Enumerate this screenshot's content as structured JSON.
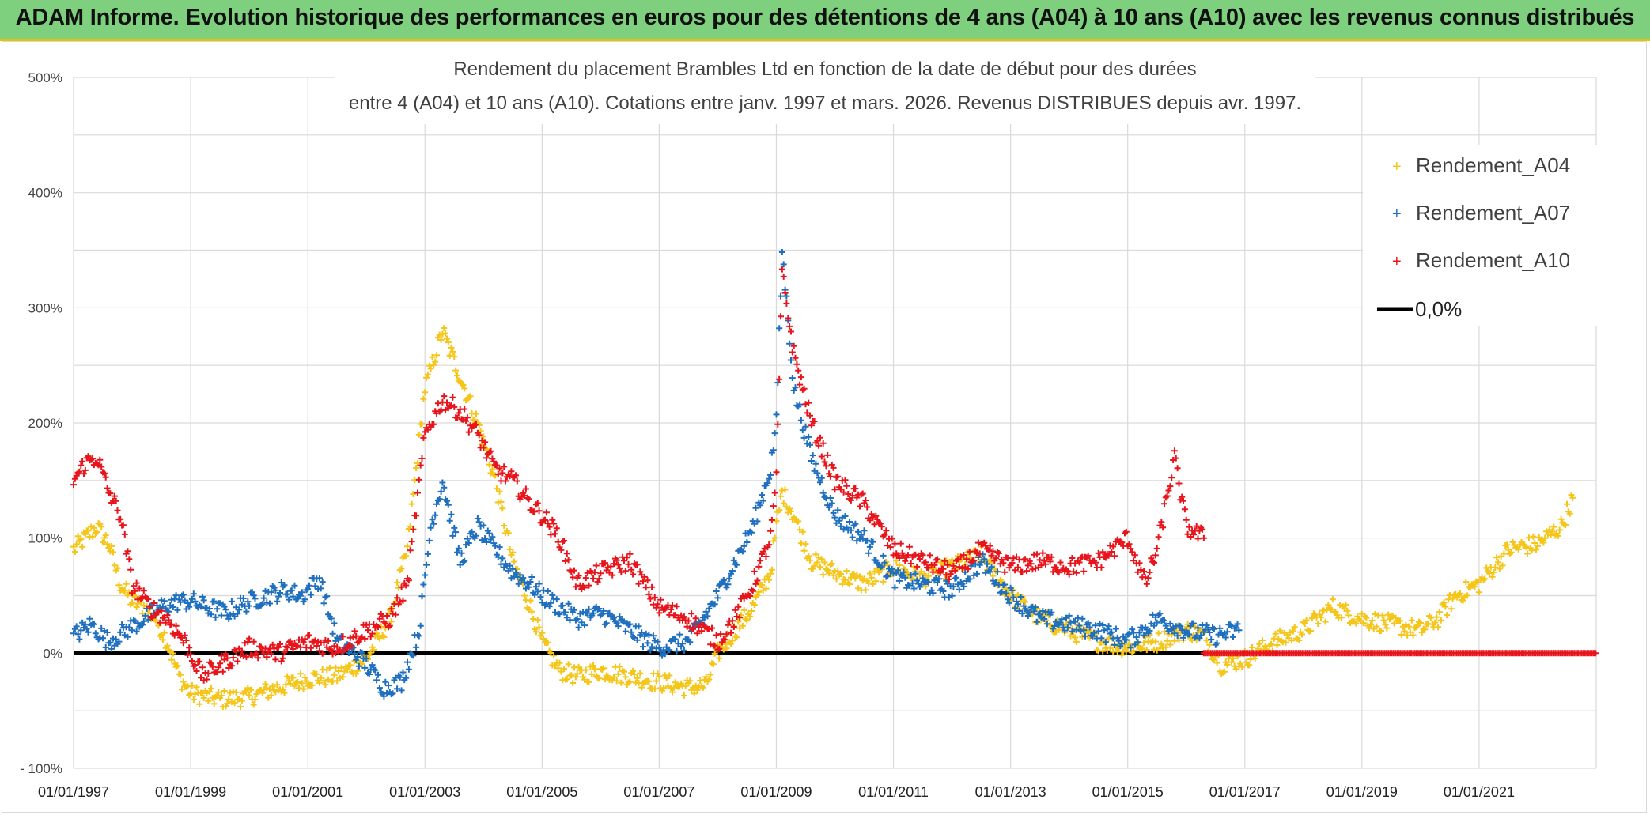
{
  "header": {
    "banner": "ADAM Informe. Evolution historique des performances en euros pour des détentions de 4 ans (A04) à 10 ans (A10) avec les revenus connus distribués"
  },
  "colors": {
    "banner_bg": "#7ed07e",
    "a04": "#f5c518",
    "a07": "#1f6fbf",
    "a10": "#e8141c",
    "zero": "#000000",
    "grid": "#d9d9d9"
  },
  "chart_data": {
    "type": "scatter",
    "title_line1": "Rendement du placement Brambles Ltd en fonction de la date de début pour des durées",
    "title_line2": "entre 4 (A04) et 10 ans (A10). Cotations entre janv. 1997 et mars. 2026. Revenus DISTRIBUES depuis avr. 1997.",
    "y_ticks": [
      "500%",
      "400%",
      "300%",
      "200%",
      "100%",
      "0%",
      "- 100%"
    ],
    "y_tick_values": [
      500,
      400,
      300,
      200,
      100,
      0,
      -100
    ],
    "x_ticks": [
      "01/01/1997",
      "01/01/1999",
      "01/01/2001",
      "01/01/2003",
      "01/01/2005",
      "01/01/2007",
      "01/01/2009",
      "01/01/2011",
      "01/01/2013",
      "01/01/2015",
      "01/01/2017",
      "01/01/2019",
      "01/01/2021"
    ],
    "x_range": [
      1997.0,
      2023.0
    ],
    "ylim": [
      -100,
      500
    ],
    "grid": true,
    "legend_position": "top-right",
    "legend": [
      {
        "label": "Rendement_A04",
        "series": "a04"
      },
      {
        "label": "Rendement_A07",
        "series": "a07"
      },
      {
        "label": "Rendement_A10",
        "series": "a10"
      },
      {
        "label": "0,0%",
        "series": "zero"
      }
    ],
    "series": [
      {
        "name": "Rendement_A04",
        "color_key": "a04",
        "x": [
          1997.0,
          1997.2,
          1997.4,
          1997.6,
          1997.8,
          1998.0,
          1998.2,
          1998.4,
          1998.6,
          1998.8,
          1999.0,
          1999.5,
          2000.0,
          2000.5,
          2001.0,
          2001.5,
          2002.0,
          2002.4,
          2002.7,
          2003.0,
          2003.3,
          2003.6,
          2003.9,
          2004.2,
          2004.5,
          2004.8,
          2005.0,
          2005.3,
          2005.6,
          2006.0,
          2006.5,
          2007.0,
          2007.5,
          2007.8,
          2008.0,
          2008.3,
          2008.6,
          2008.9,
          2009.0,
          2009.1,
          2009.3,
          2009.6,
          2010.0,
          2010.5,
          2011.0,
          2011.5,
          2012.0,
          2012.5,
          2013.0,
          2013.5,
          2014.0,
          2014.5,
          2015.0,
          2015.5,
          2016.0,
          2016.3,
          2016.6,
          2017.0,
          2017.5,
          2018.0,
          2018.5,
          2019.0,
          2019.5,
          2020.0,
          2020.3,
          2020.6,
          2021.0,
          2021.5,
          2022.0,
          2022.4,
          2022.6
        ],
        "y": [
          90,
          100,
          110,
          95,
          60,
          45,
          40,
          30,
          10,
          -20,
          -35,
          -40,
          -38,
          -30,
          -22,
          -20,
          -5,
          30,
          90,
          230,
          280,
          240,
          200,
          150,
          80,
          40,
          10,
          -15,
          -20,
          -15,
          -20,
          -25,
          -30,
          -28,
          0,
          20,
          40,
          70,
          110,
          140,
          120,
          80,
          70,
          60,
          75,
          65,
          75,
          85,
          50,
          30,
          20,
          10,
          5,
          10,
          20,
          15,
          -10,
          -5,
          10,
          20,
          40,
          30,
          25,
          20,
          30,
          50,
          60,
          90,
          95,
          110,
          135
        ]
      },
      {
        "name": "Rendement_A07",
        "color_key": "a07",
        "x": [
          1997.0,
          1997.3,
          1997.6,
          1997.9,
          1998.2,
          1998.5,
          1998.8,
          1999.0,
          1999.3,
          1999.6,
          2000.0,
          2000.3,
          2000.6,
          2000.9,
          2001.2,
          2001.5,
          2001.8,
          2002.0,
          2002.3,
          2002.6,
          2002.9,
          2003.1,
          2003.3,
          2003.6,
          2003.9,
          2004.2,
          2004.5,
          2004.8,
          2005.0,
          2005.3,
          2005.6,
          2006.0,
          2006.5,
          2007.0,
          2007.5,
          2008.0,
          2008.3,
          2008.6,
          2008.9,
          2009.0,
          2009.1,
          2009.3,
          2009.6,
          2010.0,
          2010.5,
          2011.0,
          2011.5,
          2012.0,
          2012.5,
          2013.0,
          2013.5,
          2014.0,
          2014.5,
          2015.0,
          2015.5,
          2016.0,
          2016.5,
          2016.9
        ],
        "y": [
          15,
          25,
          10,
          20,
          30,
          40,
          45,
          45,
          40,
          35,
          45,
          50,
          55,
          50,
          65,
          10,
          0,
          -10,
          -30,
          -25,
          20,
          110,
          150,
          80,
          110,
          90,
          70,
          60,
          50,
          40,
          30,
          35,
          20,
          5,
          10,
          50,
          80,
          110,
          160,
          200,
          350,
          230,
          170,
          120,
          100,
          65,
          60,
          55,
          80,
          50,
          30,
          25,
          20,
          10,
          30,
          20,
          15,
          20
        ]
      },
      {
        "name": "Rendement_A10",
        "color_key": "a10",
        "x": [
          1997.0,
          1997.2,
          1997.4,
          1997.6,
          1997.8,
          1998.0,
          1998.3,
          1998.6,
          1998.9,
          1999.2,
          1999.5,
          2000.0,
          2000.5,
          2001.0,
          2001.5,
          2002.0,
          2002.4,
          2002.7,
          2003.0,
          2003.3,
          2003.6,
          2003.9,
          2004.2,
          2004.5,
          2004.8,
          2005.0,
          2005.3,
          2005.6,
          2006.0,
          2006.5,
          2007.0,
          2007.5,
          2008.0,
          2008.3,
          2008.6,
          2008.9,
          2009.0,
          2009.1,
          2009.3,
          2009.6,
          2010.0,
          2010.5,
          2011.0,
          2011.5,
          2012.0,
          2012.5,
          2013.0,
          2013.5,
          2014.0,
          2014.5,
          2015.0,
          2015.3,
          2015.5,
          2015.8,
          2016.0,
          2016.3
        ],
        "y": [
          150,
          165,
          170,
          140,
          120,
          60,
          40,
          30,
          10,
          -20,
          -10,
          5,
          0,
          10,
          5,
          20,
          30,
          60,
          190,
          220,
          210,
          190,
          160,
          150,
          130,
          120,
          100,
          60,
          70,
          80,
          40,
          30,
          10,
          30,
          60,
          100,
          150,
          330,
          260,
          200,
          150,
          130,
          90,
          80,
          70,
          90,
          75,
          80,
          75,
          80,
          100,
          60,
          90,
          170,
          110,
          100
        ]
      },
      {
        "name": "Rendement_A10_zero_tail",
        "color_key": "a10",
        "x_start": 2016.3,
        "x_end": 2023.0,
        "y": 0
      }
    ]
  }
}
